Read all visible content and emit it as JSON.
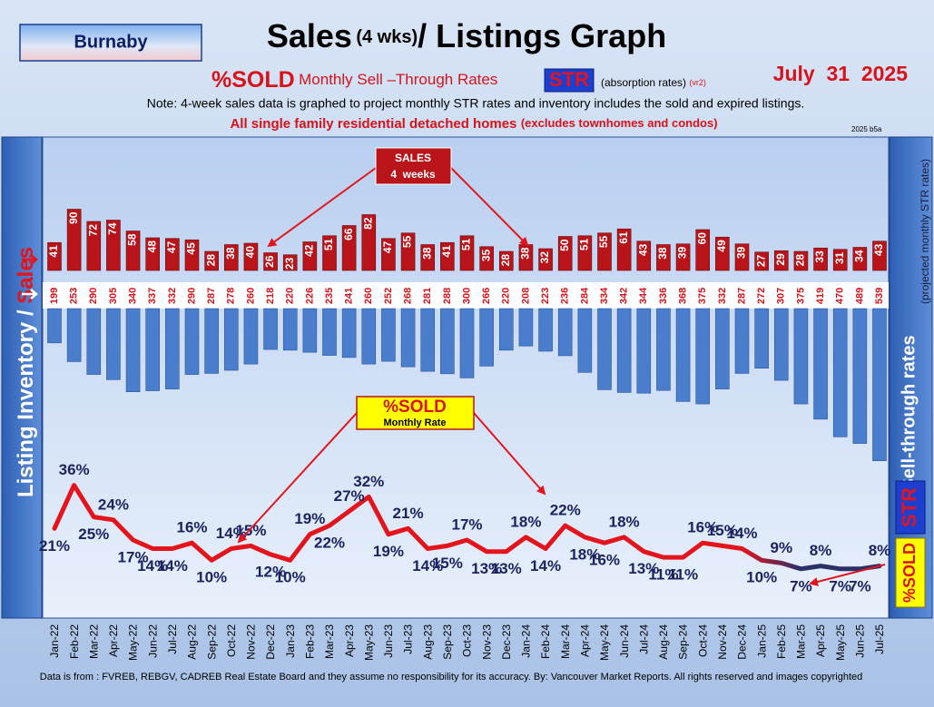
{
  "header": {
    "region": "Burnaby",
    "title_main": "Sales",
    "title_paren": "(4 wks)",
    "title_rest": "/ Listings Graph",
    "subtitle_sold": "%SOLD",
    "subtitle_rates": "Monthly Sell –Through Rates",
    "subtitle_str": "STR",
    "subtitle_absorption": "(absorption rates)",
    "subtitle_version": "(vr2)",
    "date": "July  31  2025",
    "note": "Note: 4-week sales data is graphed to project monthly STR rates and inventory includes the sold and expired listings.",
    "scope": "All single family residential detached homes",
    "scope_excludes": "(excludes townhomes and condos)",
    "build": "2025 b5a"
  },
  "side": {
    "left_inventory": "Listing Inventory / ",
    "left_sales": "Sales",
    "right_rates": "Sell-through rates",
    "right_projected": "(projected monthly STR rates)",
    "right_str": "STR",
    "right_sold": "%SOLD"
  },
  "callouts": {
    "sales_title": "SALES",
    "sales_sub": "4  weeks",
    "sold_title": "%SOLD",
    "sold_sub": "Monthly Rate"
  },
  "footer": "Data is from : FVREB, REBGV, CADREB Real Estate Board and they assume no responsibility for its accuracy. By: Vancouver Market Reports. All rights reserved and  images copyrighted",
  "chart_data": [
    {
      "type": "bar",
      "categories": [
        "Jan-22",
        "Feb-22",
        "Mar-22",
        "Apr-22",
        "May-22",
        "Jun-22",
        "Jul-22",
        "Aug-22",
        "Sep-22",
        "Oct-22",
        "Nov-22",
        "Dec-22",
        "Jan-23",
        "Feb-23",
        "Mar-23",
        "Apr-23",
        "May-23",
        "Jun-23",
        "Jul-23",
        "Aug-23",
        "Sep-23",
        "Oct-23",
        "Nov-23",
        "Dec-23",
        "Jan-24",
        "Feb-24",
        "Mar-24",
        "Apr-24",
        "May-24",
        "Jun-24",
        "Jul-24",
        "Aug-24",
        "Sep-24",
        "Oct-24",
        "Nov-24",
        "Dec-24",
        "Jan-25",
        "Feb-25",
        "Mar-25",
        "Apr-25",
        "May-25",
        "Jun-25",
        "Jul-25"
      ],
      "values": [
        41,
        90,
        72,
        74,
        58,
        48,
        47,
        45,
        28,
        38,
        40,
        26,
        23,
        42,
        51,
        66,
        82,
        47,
        55,
        38,
        41,
        51,
        35,
        28,
        38,
        32,
        50,
        51,
        55,
        61,
        43,
        38,
        39,
        60,
        49,
        39,
        27,
        29,
        28,
        33,
        31,
        34,
        43
      ],
      "color": "#b8141a",
      "ylim": [
        0,
        100
      ]
    },
    {
      "type": "bar",
      "values": [
        199,
        253,
        290,
        305,
        340,
        337,
        332,
        290,
        287,
        278,
        260,
        218,
        220,
        226,
        235,
        241,
        260,
        252,
        268,
        281,
        288,
        300,
        266,
        220,
        208,
        223,
        236,
        284,
        334,
        342,
        344,
        336,
        368,
        375,
        332,
        287,
        272,
        307,
        375,
        419,
        470,
        489,
        539
      ],
      "color": "#4a7dcc",
      "label_color": "#d8121a",
      "inverted": true,
      "ylim": [
        100,
        600
      ]
    },
    {
      "type": "line",
      "values": [
        21,
        36,
        25,
        24,
        17,
        14,
        14,
        16,
        10,
        14,
        15,
        12,
        10,
        19,
        22,
        27,
        32,
        19,
        21,
        14,
        15,
        17,
        13,
        13,
        18,
        14,
        22,
        18,
        16,
        18,
        13,
        11,
        11,
        16,
        15,
        14,
        10,
        9,
        7,
        8,
        7,
        7,
        8
      ],
      "value_labels": [
        "21%",
        "36%",
        "25%",
        "24%",
        "17%",
        "14%",
        "14%",
        "16%",
        "10%",
        "14%",
        "15%",
        "12%",
        "10%",
        "19%",
        "22%",
        "27%",
        "32%",
        "19%",
        "21%",
        "14%",
        "15%",
        "17%",
        "13%",
        "13%",
        "18%",
        "14%",
        "22%",
        "18%",
        "16%",
        "18%",
        "13%",
        "11%",
        "11%",
        "16%",
        "15%",
        "14%",
        "10%",
        "9%",
        "7%",
        "8%",
        "7%",
        "7%",
        "8%"
      ],
      "color": "#e3141c",
      "recent_color": "#2a2f66",
      "label_color": "#1c2460",
      "ylim": [
        0,
        40
      ]
    }
  ]
}
